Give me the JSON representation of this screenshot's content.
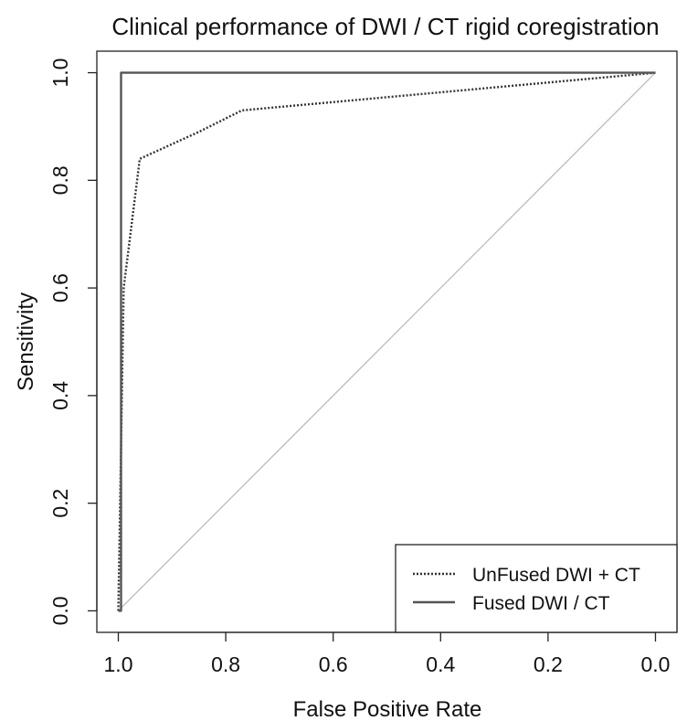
{
  "chart_data": {
    "type": "line",
    "title": "Clinical performance of DWI / CT rigid coregistration",
    "xlabel": "False Positive Rate",
    "ylabel": "Sensitivity",
    "xlim": [
      1.04,
      -0.04
    ],
    "ylim": [
      -0.04,
      1.04
    ],
    "x_reversed": true,
    "xticks": [
      1.0,
      0.8,
      0.6,
      0.4,
      0.2,
      0.0
    ],
    "xtick_labels": [
      "1.0",
      "0.8",
      "0.6",
      "0.4",
      "0.2",
      "0.0"
    ],
    "yticks": [
      0.0,
      0.2,
      0.4,
      0.6,
      0.8,
      1.0
    ],
    "ytick_labels": [
      "0.0",
      "0.2",
      "0.4",
      "0.6",
      "0.8",
      "1.0"
    ],
    "grid": false,
    "legend_position": "bottom-right",
    "series": [
      {
        "name": "UnFused DWI + CT",
        "style": "dotted",
        "color": "#333333",
        "x": [
          1.0,
          0.99,
          0.96,
          0.85,
          0.77,
          0.0
        ],
        "y": [
          0.0,
          0.6,
          0.84,
          0.89,
          0.93,
          1.0
        ]
      },
      {
        "name": "Fused DWI / CT",
        "style": "solid",
        "color": "#555555",
        "x": [
          1.0,
          0.995,
          0.995,
          0.0
        ],
        "y": [
          0.0,
          0.0,
          1.0,
          1.0
        ]
      }
    ],
    "reference_line": {
      "x": [
        1.0,
        0.0
      ],
      "y": [
        0.0,
        1.0
      ],
      "color": "#bbbbbb"
    }
  }
}
